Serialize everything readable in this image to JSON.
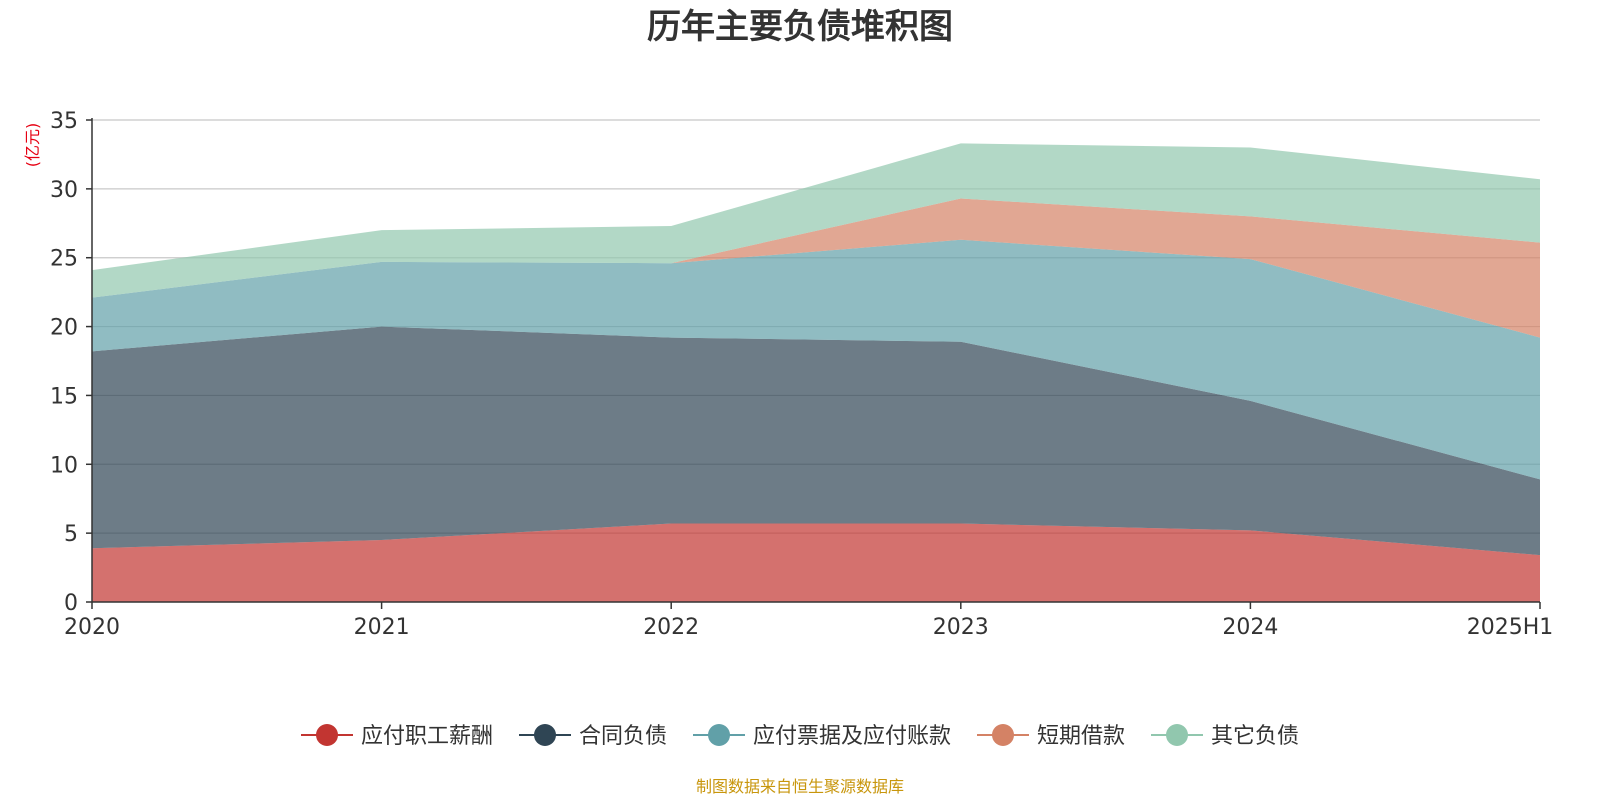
{
  "chart_data": {
    "type": "area",
    "stacked": true,
    "title": "历年主要负债堆积图",
    "unit_label": "(亿元)",
    "categories": [
      "2020",
      "2021",
      "2022",
      "2023",
      "2024",
      "2025H1"
    ],
    "ylim": [
      0,
      35
    ],
    "yticks": [
      0,
      5,
      10,
      15,
      20,
      25,
      30,
      35
    ],
    "grid": true,
    "legend_position": "bottom",
    "series": [
      {
        "name": "应付职工薪酬",
        "values": [
          3.9,
          4.5,
          5.7,
          5.7,
          5.2,
          3.4
        ],
        "color": "#c23531"
      },
      {
        "name": "合同负债",
        "values": [
          14.3,
          15.5,
          13.5,
          13.2,
          9.4,
          5.5
        ],
        "color": "#2f4554"
      },
      {
        "name": "应付票据及应付账款",
        "values": [
          3.9,
          4.7,
          5.4,
          7.4,
          10.3,
          10.3
        ],
        "color": "#61a0a8"
      },
      {
        "name": "短期借款",
        "values": [
          0.0,
          0.0,
          0.0,
          3.0,
          3.1,
          6.9
        ],
        "color": "#d48265"
      },
      {
        "name": "其它负债",
        "values": [
          2.0,
          2.3,
          2.7,
          4.0,
          5.0,
          4.6
        ],
        "color": "#91c7ae"
      }
    ],
    "unit_color": "#e60012"
  },
  "source_text": "制图数据来自恒生聚源数据库",
  "source_color": "#c8960c"
}
